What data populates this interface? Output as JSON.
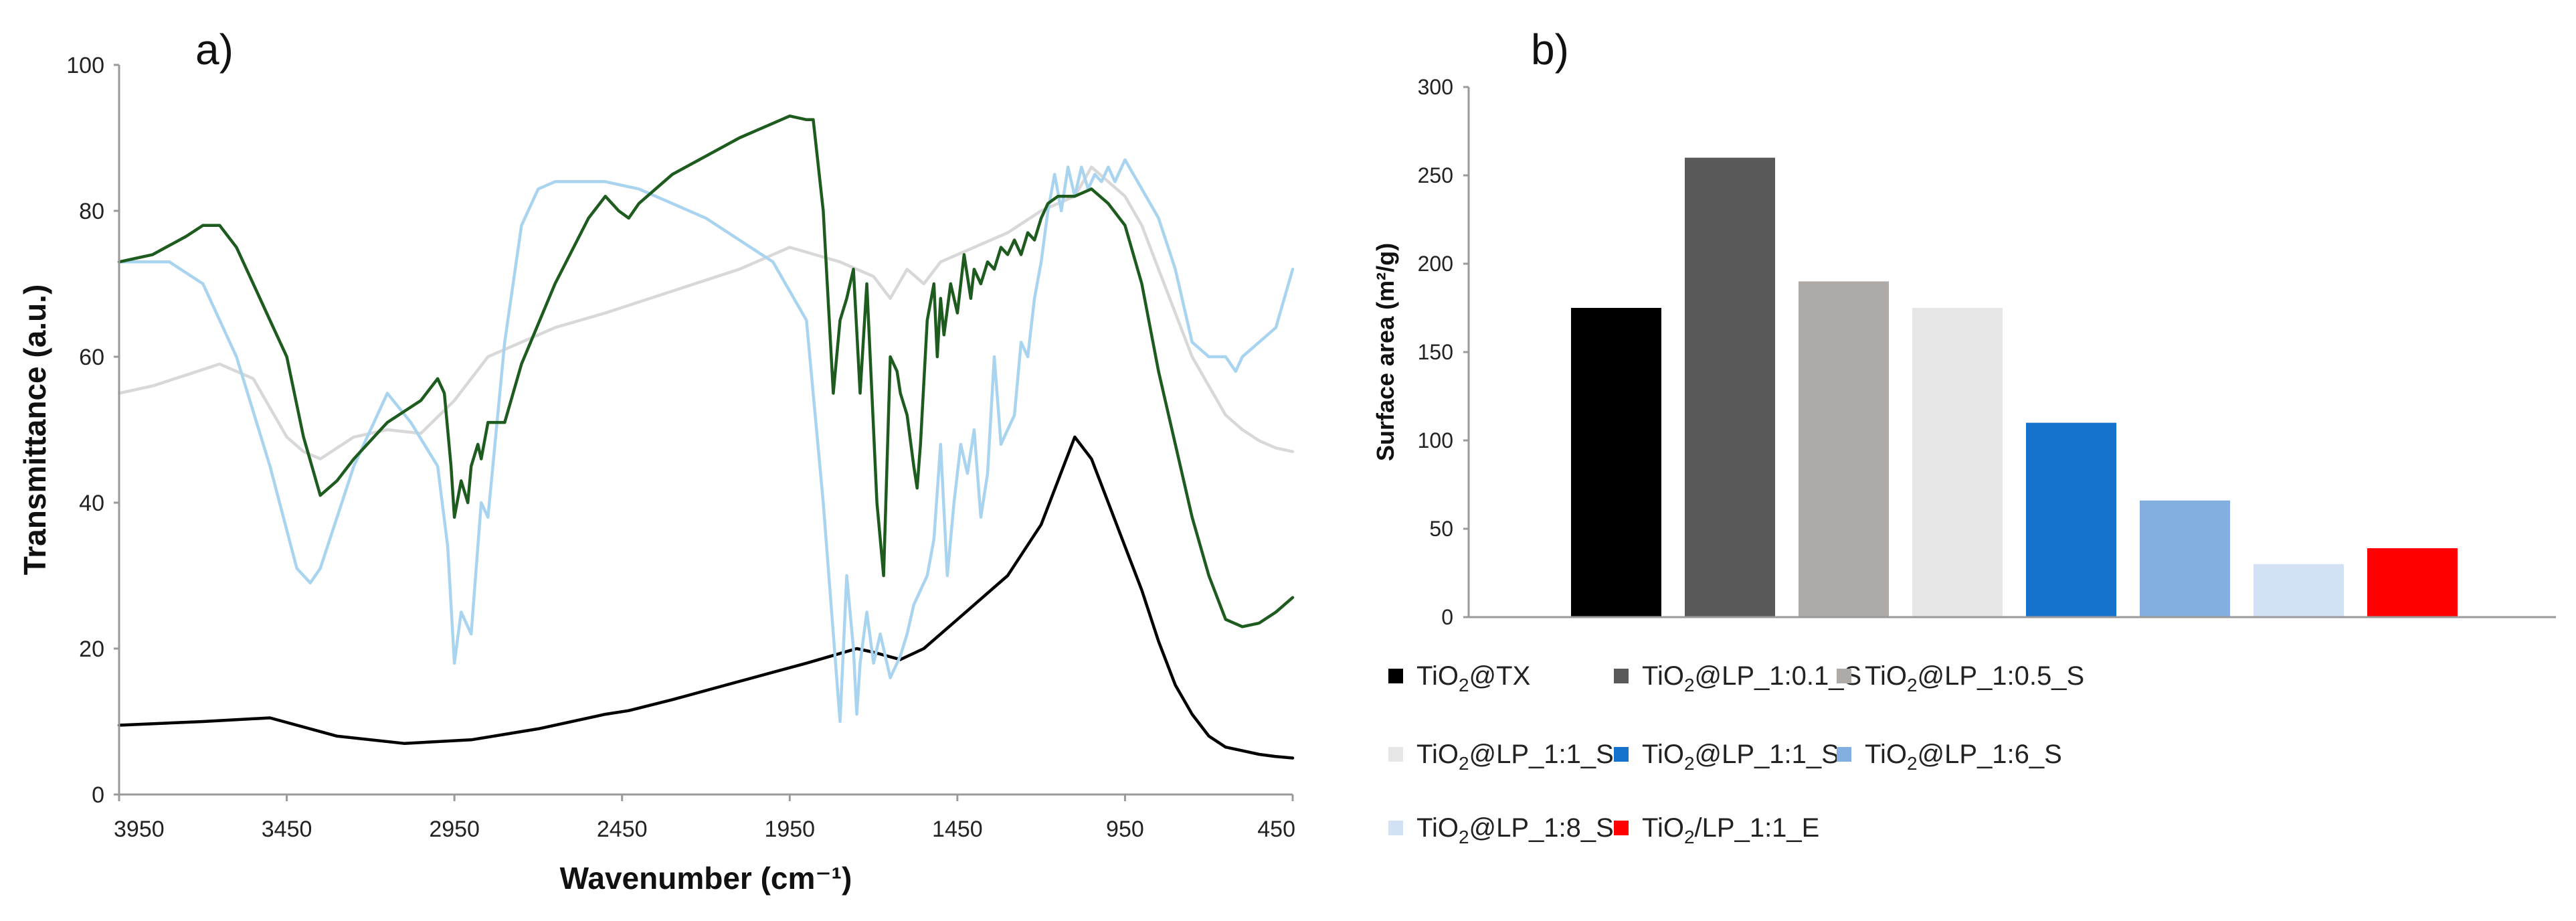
{
  "chart_data": [
    {
      "type": "line",
      "panel_label": "a)",
      "xlabel": "Wavenumber (cm⁻¹)",
      "ylabel": "Transmittance (a.u.)",
      "xlim": [
        3950,
        450
      ],
      "ylim": [
        0,
        100
      ],
      "xticks": [
        "3950",
        "3450",
        "2950",
        "2450",
        "1950",
        "1450",
        "950",
        "450"
      ],
      "yticks": [
        "0",
        "20",
        "40",
        "60",
        "80",
        "100"
      ],
      "series": [
        {
          "name": "TiO2@TX",
          "color": "#000000",
          "x": [
            3950,
            3700,
            3500,
            3300,
            3100,
            2900,
            2700,
            2500,
            2430,
            2300,
            2100,
            1900,
            1750,
            1700,
            1620,
            1550,
            1450,
            1300,
            1200,
            1150,
            1100,
            1050,
            1000,
            950,
            900,
            850,
            800,
            750,
            700,
            650,
            600,
            550,
            500,
            450
          ],
          "y": [
            9.5,
            10,
            10.5,
            8,
            7,
            7.5,
            9,
            11,
            11.5,
            13,
            15.5,
            18,
            20,
            19.5,
            18.5,
            20,
            24,
            30,
            37,
            43,
            49,
            46,
            40,
            34,
            28,
            21,
            15,
            11,
            8,
            6.5,
            6,
            5.5,
            5.2,
            5
          ]
        },
        {
          "name": "TiO2@LP_1:1_S",
          "color": "#d8d8d8",
          "x": [
            3950,
            3850,
            3750,
            3650,
            3550,
            3450,
            3400,
            3350,
            3250,
            3150,
            3050,
            2950,
            2850,
            2750,
            2650,
            2500,
            2300,
            2100,
            1950,
            1800,
            1700,
            1650,
            1600,
            1550,
            1500,
            1400,
            1300,
            1200,
            1100,
            1050,
            1000,
            950,
            900,
            850,
            800,
            750,
            700,
            650,
            600,
            550,
            500,
            450
          ],
          "y": [
            55,
            56,
            57.5,
            59,
            57,
            49,
            47,
            46,
            49,
            50,
            49.5,
            54,
            60,
            62,
            64,
            66,
            69,
            72,
            75,
            73,
            71,
            68,
            72,
            70,
            73,
            75,
            77,
            80,
            82,
            86,
            84,
            82,
            78,
            72,
            66,
            60,
            56,
            52,
            50,
            48.5,
            47.5,
            47
          ]
        },
        {
          "name": "TiO2@LP_1:6_S",
          "color": "#a9d4ef",
          "x": [
            3950,
            3800,
            3700,
            3600,
            3500,
            3420,
            3380,
            3350,
            3250,
            3150,
            3080,
            3000,
            2970,
            2950,
            2930,
            2900,
            2870,
            2850,
            2800,
            2750,
            2700,
            2650,
            2600,
            2500,
            2400,
            2300,
            2200,
            2100,
            2000,
            1900,
            1850,
            1800,
            1780,
            1760,
            1750,
            1740,
            1720,
            1700,
            1680,
            1650,
            1620,
            1600,
            1580,
            1560,
            1540,
            1520,
            1500,
            1480,
            1460,
            1440,
            1420,
            1400,
            1380,
            1360,
            1340,
            1320,
            1300,
            1280,
            1260,
            1240,
            1220,
            1200,
            1180,
            1160,
            1140,
            1120,
            1100,
            1080,
            1060,
            1040,
            1020,
            1000,
            980,
            950,
            900,
            850,
            800,
            750,
            700,
            650,
            620,
            600,
            550,
            500,
            450
          ],
          "y": [
            73,
            73,
            70,
            60,
            45,
            31,
            29,
            31,
            45,
            55,
            51,
            45,
            34,
            18,
            25,
            22,
            40,
            38,
            62,
            78,
            83,
            84,
            84,
            84,
            83,
            81,
            79,
            76,
            73,
            65,
            40,
            10,
            30,
            20,
            11,
            18,
            25,
            18,
            22,
            16,
            19,
            22,
            26,
            28,
            30,
            35,
            48,
            30,
            40,
            48,
            44,
            50,
            38,
            44,
            60,
            48,
            50,
            52,
            62,
            60,
            68,
            73,
            80,
            85,
            80,
            86,
            82,
            86,
            83,
            85,
            84,
            86,
            84,
            87,
            83,
            79,
            72,
            62,
            60,
            60,
            58,
            60,
            62,
            64,
            72
          ]
        },
        {
          "name": "TiO2@LP_1:8_S",
          "color": "#1e5b1e",
          "x": [
            3950,
            3850,
            3750,
            3700,
            3650,
            3600,
            3550,
            3500,
            3450,
            3400,
            3350,
            3300,
            3250,
            3150,
            3050,
            3000,
            2980,
            2960,
            2950,
            2930,
            2910,
            2900,
            2880,
            2870,
            2850,
            2800,
            2750,
            2650,
            2550,
            2500,
            2460,
            2430,
            2400,
            2300,
            2100,
            1950,
            1900,
            1880,
            1850,
            1820,
            1800,
            1780,
            1760,
            1740,
            1720,
            1700,
            1690,
            1680,
            1670,
            1650,
            1630,
            1620,
            1600,
            1580,
            1570,
            1560,
            1540,
            1520,
            1510,
            1500,
            1490,
            1470,
            1450,
            1430,
            1410,
            1400,
            1380,
            1360,
            1340,
            1320,
            1300,
            1280,
            1260,
            1240,
            1220,
            1200,
            1180,
            1150,
            1100,
            1050,
            1000,
            950,
            900,
            850,
            800,
            750,
            700,
            650,
            600,
            550,
            500,
            450
          ],
          "y": [
            73,
            74,
            76.5,
            78,
            78,
            75,
            70,
            65,
            60,
            49,
            41,
            43,
            46,
            51,
            54,
            57,
            55,
            45,
            38,
            43,
            40,
            45,
            48,
            46,
            51,
            51,
            59,
            70,
            79,
            82,
            80,
            79,
            81,
            85,
            90,
            93,
            92.5,
            92.5,
            80,
            55,
            65,
            68,
            72,
            55,
            70,
            50,
            40,
            35,
            30,
            60,
            58,
            55,
            52,
            45,
            42,
            48,
            65,
            70,
            60,
            68,
            63,
            70,
            66,
            74,
            68,
            72,
            70,
            73,
            72,
            75,
            74,
            76,
            74,
            77,
            76,
            79,
            81,
            82,
            82,
            83,
            81,
            78,
            70,
            58,
            48,
            38,
            30,
            24,
            23,
            23.5,
            25,
            27
          ]
        }
      ]
    },
    {
      "type": "bar",
      "panel_label": "b)",
      "title": "",
      "xlabel": "",
      "ylabel": "Surface area (m²/g)",
      "ylim": [
        0,
        300
      ],
      "yticks": [
        "0",
        "50",
        "100",
        "150",
        "200",
        "250",
        "300"
      ],
      "categories": [
        "TiO2@TX",
        "TiO2@LP_1:0.1_S",
        "TiO2@LP_1:0.5_S",
        "TiO2@LP_1:1_S",
        "TiO2@LP_1:1_S",
        "TiO2@LP_1:6_S",
        "TiO2@LP_1:8_S",
        "TiO2/LP_1:1_E"
      ],
      "values": [
        175,
        260,
        190,
        175,
        110,
        66,
        30,
        39
      ],
      "colors": [
        "#000000",
        "#595959",
        "#aeaaa7",
        "#e6e6e6",
        "#1672cd",
        "#82aee0",
        "#d2e2f4",
        "#ff0000"
      ],
      "legend": [
        {
          "pre": "TiO",
          "sub": "2",
          "post": "@TX"
        },
        {
          "pre": "TiO",
          "sub": "2",
          "post": "@LP_1:0.1_S"
        },
        {
          "pre": "TiO",
          "sub": "2",
          "post": "@LP_1:0.5_S"
        },
        {
          "pre": "TiO",
          "sub": "2",
          "post": "@LP_1:1_S"
        },
        {
          "pre": "TiO",
          "sub": "2",
          "post": "@LP_1:1_S"
        },
        {
          "pre": "TiO",
          "sub": "2",
          "post": "@LP_1:6_S"
        },
        {
          "pre": "TiO",
          "sub": "2",
          "post": "@LP_1:8_S"
        },
        {
          "pre": "TiO",
          "sub": "2",
          "post": "/LP_1:1_E"
        }
      ],
      "legend_position": "bottom"
    }
  ]
}
